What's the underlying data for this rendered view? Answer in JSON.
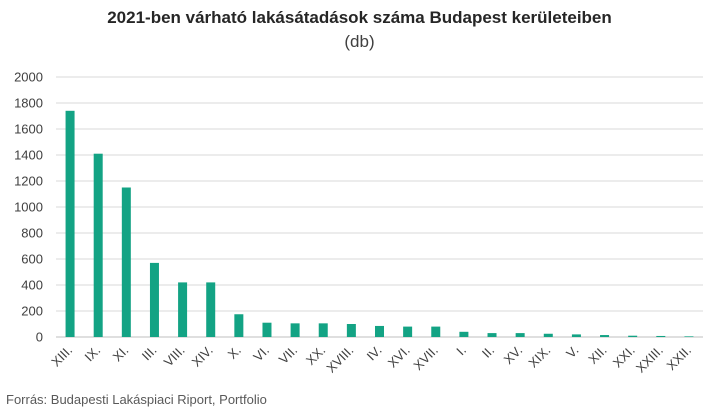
{
  "chart_data": {
    "type": "bar",
    "title": "2021-ben várható lakásátadások száma Budapest kerületeiben",
    "subtitle": "(db)",
    "xlabel": "",
    "ylabel": "",
    "ylim": [
      0,
      2000
    ],
    "yticks": [
      0,
      200,
      400,
      600,
      800,
      1000,
      1200,
      1400,
      1600,
      1800,
      2000
    ],
    "grid": true,
    "legend": "none",
    "bar_color": "#13A384",
    "categories": [
      "XIII.",
      "IX.",
      "XI.",
      "III.",
      "VIII.",
      "XIV.",
      "X.",
      "VI.",
      "VII.",
      "XX.",
      "XVIII.",
      "IV.",
      "XVI.",
      "XVII.",
      "I.",
      "II.",
      "XV.",
      "XIX.",
      "V.",
      "XII.",
      "XXI.",
      "XXIII.",
      "XXII."
    ],
    "values": [
      1740,
      1410,
      1150,
      570,
      420,
      420,
      175,
      110,
      105,
      105,
      100,
      85,
      80,
      80,
      40,
      30,
      30,
      25,
      20,
      15,
      10,
      8,
      5
    ]
  },
  "source": "Forrás: Budapesti Lakáspiaci Riport, Portfolio"
}
